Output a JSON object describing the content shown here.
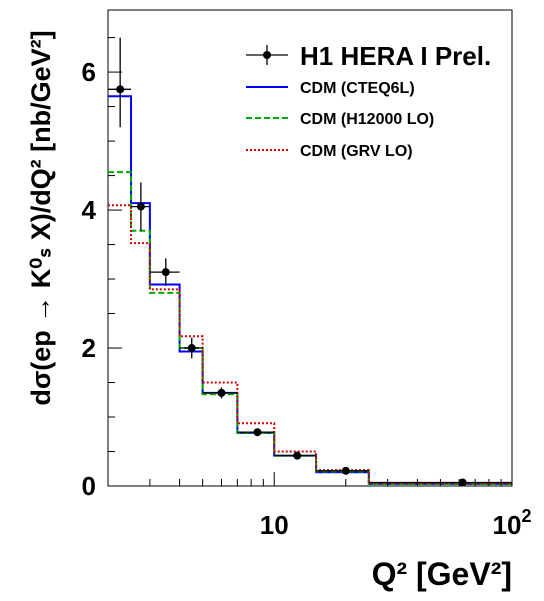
{
  "chart_data": {
    "type": "step",
    "xscale": "log",
    "xlim": [
      2,
      100
    ],
    "ylim": [
      0,
      6.9
    ],
    "xlabel": "Q² [GeV²]",
    "ylabel": "dσ(ep → K⁰ₛ X)/dQ² [nb/GeV²]",
    "xtick_labels": [
      {
        "value": 10,
        "base": "10",
        "exp": ""
      },
      {
        "value": 100,
        "base": "10",
        "exp": "2"
      }
    ],
    "yticks": [
      0,
      2,
      4,
      6
    ],
    "legend_position": "top-right",
    "data": {
      "name": "H1 HERA I Prel.",
      "points": [
        {
          "x": 2.25,
          "y": 5.75,
          "xerr": [
            2.0,
            2.5
          ],
          "yerr": [
            5.2,
            6.5
          ]
        },
        {
          "x": 2.75,
          "y": 4.05,
          "xerr": [
            2.5,
            3.0
          ],
          "yerr": [
            3.7,
            4.4
          ]
        },
        {
          "x": 3.5,
          "y": 3.1,
          "xerr": [
            3.0,
            4.0
          ],
          "yerr": [
            2.9,
            3.3
          ]
        },
        {
          "x": 4.5,
          "y": 2.0,
          "xerr": [
            4.0,
            5.0
          ],
          "yerr": [
            1.85,
            2.15
          ]
        },
        {
          "x": 6.0,
          "y": 1.35,
          "xerr": [
            5.0,
            7.0
          ],
          "yerr": [
            1.27,
            1.43
          ]
        },
        {
          "x": 8.5,
          "y": 0.78,
          "xerr": [
            7.0,
            10.0
          ],
          "yerr": [
            0.73,
            0.83
          ]
        },
        {
          "x": 12.5,
          "y": 0.44,
          "xerr": [
            10.0,
            15.0
          ],
          "yerr": [
            0.41,
            0.47
          ]
        },
        {
          "x": 20.0,
          "y": 0.22,
          "xerr": [
            15.0,
            25.0
          ],
          "yerr": [
            0.2,
            0.24
          ]
        },
        {
          "x": 62.0,
          "y": 0.05,
          "xerr": [
            25.0,
            100.0
          ],
          "yerr": [
            0.045,
            0.055
          ]
        }
      ]
    },
    "bin_edges": [
      2,
      2.5,
      3,
      4,
      5,
      7,
      10,
      15,
      25,
      100
    ],
    "series": [
      {
        "name": "CDM (CTEQ6L)",
        "color": "#0000ff",
        "dash": "solid",
        "values": [
          5.65,
          4.1,
          2.92,
          1.95,
          1.35,
          0.77,
          0.44,
          0.2,
          0.03
        ]
      },
      {
        "name": "CDM (H12000 LO)",
        "color": "#00aa00",
        "dash": "dashed",
        "values": [
          4.55,
          3.7,
          2.8,
          2.0,
          1.33,
          0.77,
          0.44,
          0.21,
          0.03
        ]
      },
      {
        "name": "CDM (GRV LO)",
        "color": "#cc0000",
        "dash": "dotted",
        "values": [
          4.07,
          3.52,
          2.85,
          2.17,
          1.5,
          0.91,
          0.5,
          0.23,
          0.04
        ]
      }
    ]
  }
}
